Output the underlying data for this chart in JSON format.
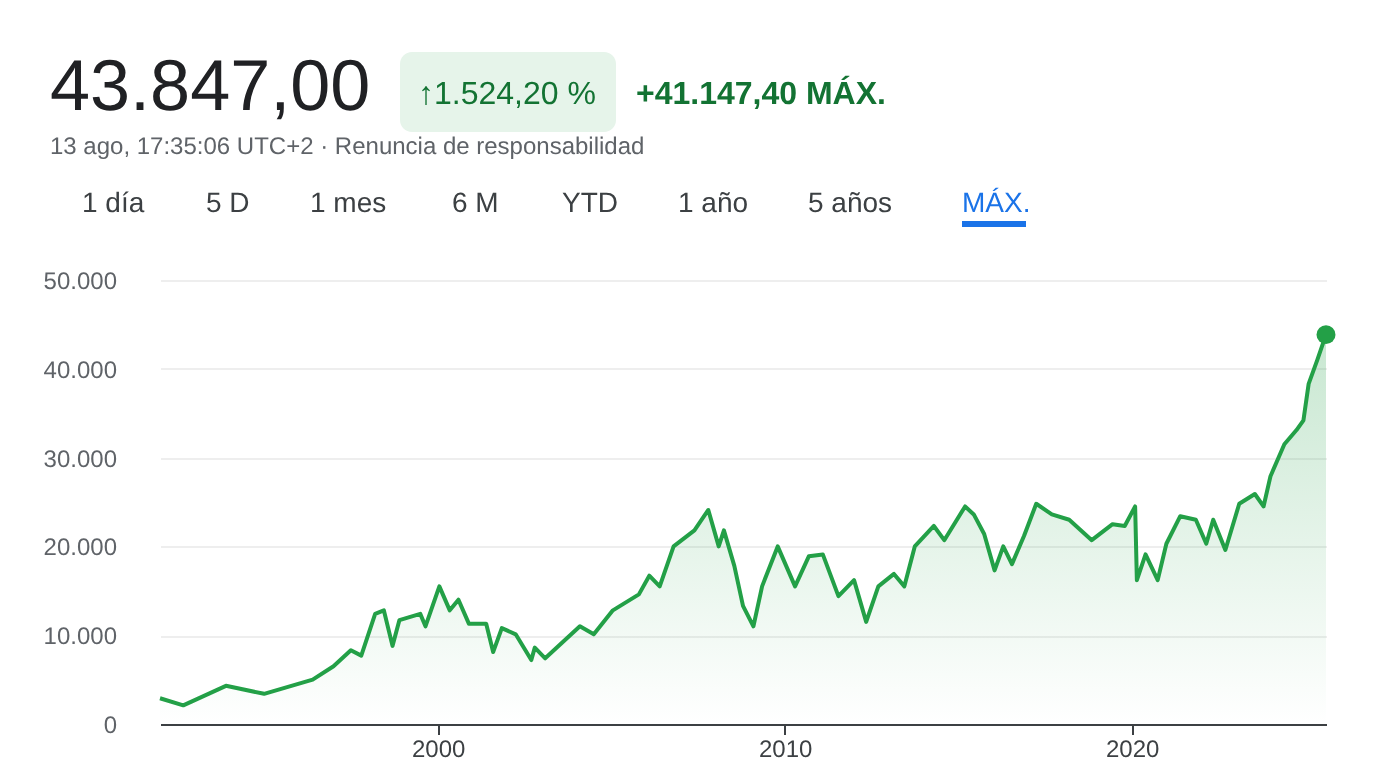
{
  "chart_data": {
    "type": "area",
    "title": "43.847,00",
    "subtitle": "13 ago, 17:35:06 UTC+2 · Renuncia de responsabilidad",
    "annotations": [
      "↑1.524,20 %",
      "+41.147,40 MÁX.",
      "1 día",
      "5 D",
      "1 mes",
      "6 M",
      "YTD",
      "1 año",
      "5 años",
      "MÁX."
    ],
    "series": [
      {
        "color": "#23a047",
        "x": [
          1992.0,
          1992.67,
          1993.9,
          1995.0,
          1996.4,
          1997.0,
          1997.5,
          1997.8,
          1998.2,
          1998.45,
          1998.7,
          1998.9,
          1999.5,
          1999.65,
          2000.05,
          2000.35,
          2000.6,
          2000.9,
          2001.4,
          2001.6,
          2001.85,
          2002.25,
          2002.7,
          2002.8,
          2003.1,
          2003.6,
          2004.1,
          2004.5,
          2005.05,
          2005.8,
          2006.1,
          2006.4,
          2006.8,
          2007.4,
          2007.8,
          2008.1,
          2008.25,
          2008.55,
          2008.8,
          2009.1,
          2009.35,
          2009.8,
          2010.3,
          2010.7,
          2011.1,
          2011.55,
          2012.0,
          2012.35,
          2012.7,
          2013.15,
          2013.45,
          2013.75,
          2014.3,
          2014.6,
          2015.2,
          2015.45,
          2015.75,
          2016.05,
          2016.3,
          2016.55,
          2016.9,
          2017.25,
          2017.7,
          2018.2,
          2018.85,
          2019.45,
          2019.8,
          2020.1,
          2020.15,
          2020.4,
          2020.75,
          2021.0,
          2021.4,
          2021.85,
          2022.15,
          2022.35,
          2022.7,
          2023.1,
          2023.55,
          2023.8,
          2024.0,
          2024.4,
          2024.75,
          2024.95,
          2025.1,
          2025.35,
          2025.6
        ],
        "values": [
          2900,
          2100,
          4300,
          3400,
          5000,
          6500,
          8300,
          7700,
          12400,
          12800,
          8800,
          11700,
          12400,
          11000,
          15500,
          12800,
          14000,
          11300,
          11300,
          8100,
          10800,
          10100,
          7200,
          8600,
          7400,
          9200,
          11000,
          10100,
          12800,
          14600,
          16700,
          15500,
          20000,
          21800,
          24100,
          20000,
          21800,
          17800,
          13300,
          11000,
          15500,
          20000,
          15500,
          18900,
          19100,
          14400,
          16200,
          11500,
          15500,
          16900,
          15500,
          20000,
          22300,
          20700,
          24500,
          23600,
          21400,
          17300,
          20000,
          18000,
          21200,
          24800,
          23600,
          23000,
          20700,
          22500,
          22300,
          24500,
          16200,
          19100,
          16200,
          20300,
          23400,
          23000,
          20300,
          23000,
          19600,
          24800,
          25900,
          24500,
          27900,
          31500,
          33100,
          34200,
          38300,
          41000,
          43847
        ]
      }
    ],
    "xlim": [
      1992.0,
      2025.6
    ],
    "xticks": [
      2000,
      2010,
      2020
    ],
    "ylim": [
      0,
      50000
    ],
    "yticks": [
      0,
      {
        "value": 10000,
        "label": "10.000"
      },
      {
        "value": 20000,
        "label": "20.000"
      },
      {
        "value": 30000,
        "label": "30.000"
      },
      {
        "value": 40000,
        "label": "40.000"
      },
      {
        "value": 50000,
        "label": "50.000"
      }
    ],
    "grid": "y",
    "line_style": "solid",
    "marker": "none"
  }
}
